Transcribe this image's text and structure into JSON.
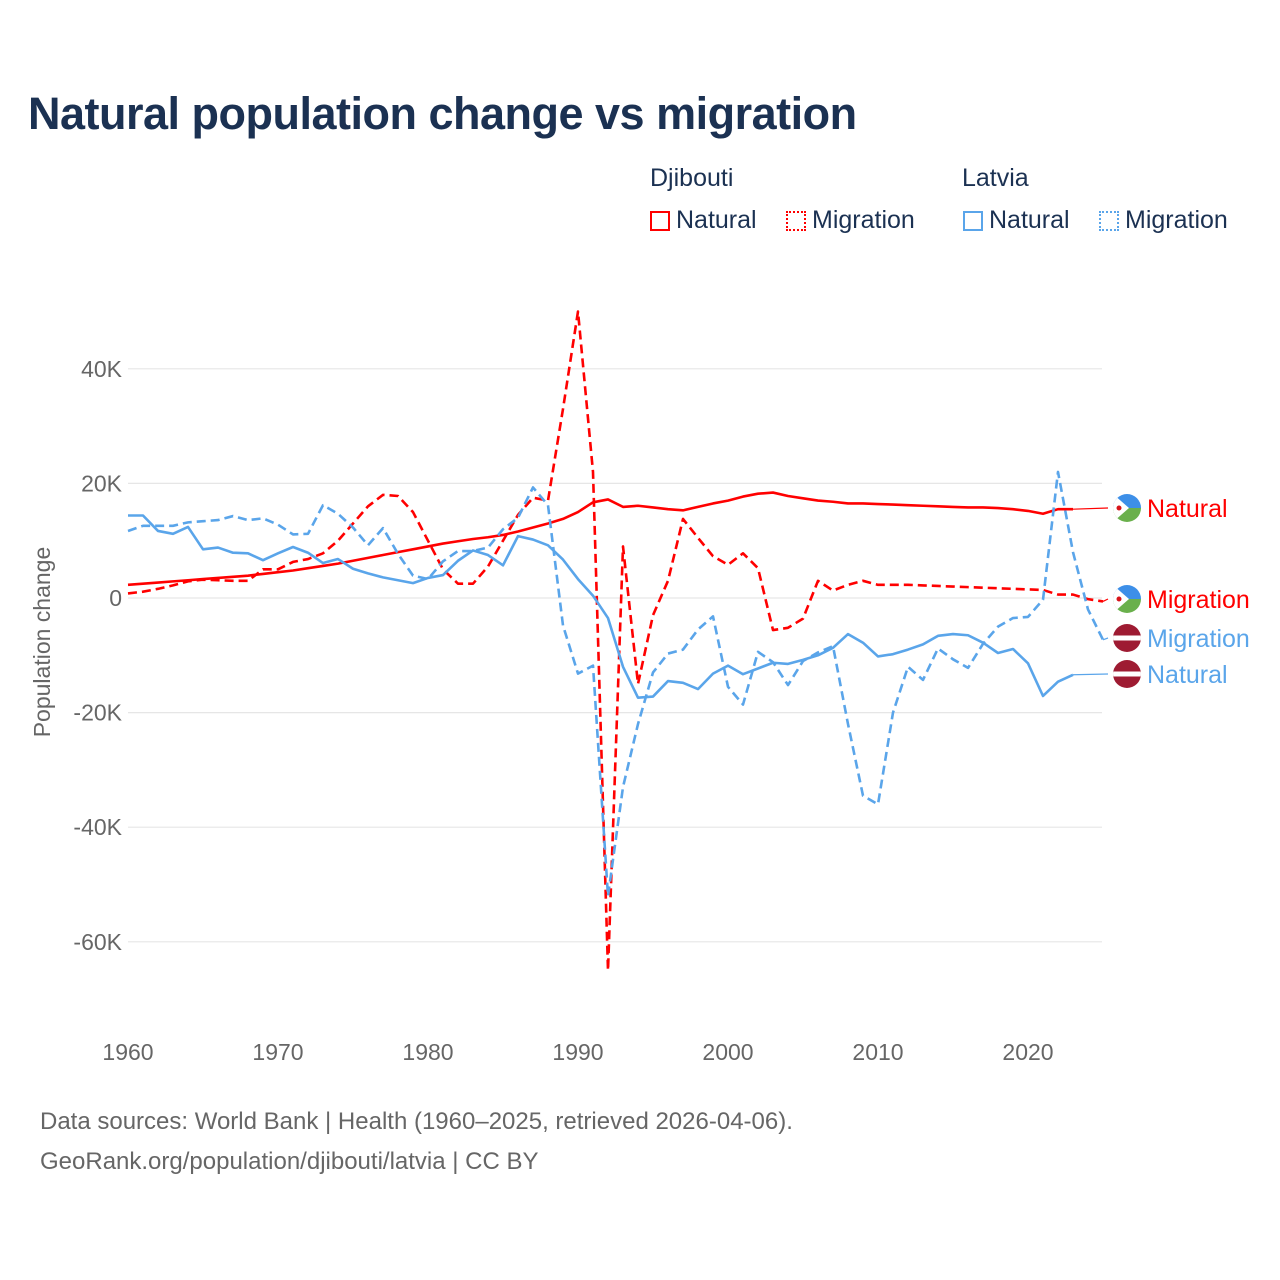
{
  "title": "Natural population change vs migration",
  "legend": {
    "groups": [
      {
        "name": "Djibouti",
        "color": "#ff0000",
        "items": [
          "Natural",
          "Migration"
        ]
      },
      {
        "name": "Latvia",
        "color": "#5aa5ea",
        "items": [
          "Natural",
          "Migration"
        ]
      }
    ]
  },
  "footer": {
    "line1": "Data sources: World Bank | Health (1960–2025, retrieved 2026-04-06).",
    "line2": "GeoRank.org/population/djibouti/latvia | CC BY"
  },
  "chart_data": {
    "type": "line",
    "title": "Natural population change vs migration",
    "xlabel": "",
    "ylabel": "Population change",
    "xlim": [
      1960,
      2025
    ],
    "ylim": [
      -70000,
      50000
    ],
    "x_ticks": [
      1960,
      1970,
      1980,
      1990,
      2000,
      2010,
      2020
    ],
    "x_tick_labels": [
      "1960",
      "1970",
      "1980",
      "1990",
      "2000",
      "2010",
      "2020"
    ],
    "y_ticks": [
      40000,
      20000,
      0,
      -20000,
      -40000,
      -60000
    ],
    "y_tick_labels": [
      "40K",
      "20K",
      "0",
      "-20K",
      "-40K",
      "-60K"
    ],
    "grid": true,
    "legend_position": "top-right",
    "end_labels": [
      "Natural",
      "Migration",
      "Migration",
      "Natural"
    ],
    "series": [
      {
        "name": "Djibouti Natural",
        "country": "Djibouti",
        "kind": "Natural",
        "color": "#ff0000",
        "dash": false,
        "start_year": 1960,
        "values_k": [
          2.3,
          2.5,
          2.7,
          2.9,
          3.1,
          3.3,
          3.5,
          3.7,
          3.9,
          4.2,
          4.5,
          4.8,
          5.2,
          5.6,
          6.0,
          6.5,
          7.0,
          7.5,
          8.0,
          8.5,
          9.0,
          9.5,
          9.9,
          10.3,
          10.6,
          11.0,
          11.6,
          12.3,
          13.0,
          13.8,
          15.0,
          16.7,
          17.2,
          15.9,
          16.1,
          15.8,
          15.5,
          15.3,
          15.9,
          16.5,
          17.0,
          17.7,
          18.2,
          18.4,
          17.8,
          17.4,
          17.0,
          16.8,
          16.5,
          16.5,
          16.4,
          16.3,
          16.2,
          16.1,
          16.0,
          15.9,
          15.8,
          15.8,
          15.7,
          15.5,
          15.2,
          14.7,
          15.5,
          15.5
        ],
        "label_end_year": 2025
      },
      {
        "name": "Djibouti Migration",
        "country": "Djibouti",
        "kind": "Migration",
        "color": "#ff0000",
        "dash": true,
        "start_year": 1960,
        "values_k": [
          0.8,
          1.1,
          1.6,
          2.2,
          2.9,
          3.2,
          3.1,
          3.0,
          3.0,
          5.0,
          5.0,
          6.3,
          6.8,
          7.8,
          10.0,
          13.0,
          16.0,
          18.0,
          17.8,
          15.0,
          10.0,
          5.0,
          2.5,
          2.5,
          5.5,
          10.0,
          14.5,
          17.5,
          17.0,
          33.0,
          50.0,
          22.0,
          -65.0,
          9.0,
          -15.0,
          -3.0,
          3.0,
          13.8,
          10.5,
          7.3,
          5.8,
          7.8,
          5.2,
          -5.6,
          -5.2,
          -3.6,
          3.0,
          1.3,
          2.3,
          3.0,
          2.3,
          2.3,
          2.3,
          2.2,
          2.1,
          2.0,
          1.9,
          1.8,
          1.7,
          1.6,
          1.5,
          1.4,
          0.6,
          0.6,
          -0.2,
          -0.6
        ],
        "label_end_year": 2025
      },
      {
        "name": "Latvia Natural",
        "country": "Latvia",
        "kind": "Natural",
        "color": "#5aa5ea",
        "dash": false,
        "start_year": 1960,
        "values_k": [
          14.4,
          14.4,
          11.7,
          11.2,
          12.4,
          8.5,
          8.8,
          7.9,
          7.8,
          6.6,
          7.8,
          8.9,
          7.9,
          6.1,
          6.8,
          5.1,
          4.3,
          3.6,
          3.1,
          2.6,
          3.5,
          4.0,
          6.5,
          8.3,
          7.5,
          5.7,
          10.8,
          10.2,
          9.2,
          6.7,
          3.3,
          0.4,
          -3.5,
          -12.0,
          -17.4,
          -17.2,
          -14.5,
          -14.8,
          -15.9,
          -13.2,
          -11.8,
          -13.3,
          -12.3,
          -11.3,
          -11.5,
          -10.8,
          -10.0,
          -8.7,
          -6.3,
          -7.8,
          -10.2,
          -9.8,
          -9.0,
          -8.1,
          -6.6,
          -6.3,
          -6.5,
          -7.8,
          -9.6,
          -8.9,
          -11.4,
          -17.1,
          -14.6,
          -13.4
        ],
        "label_end_year": 2025
      },
      {
        "name": "Latvia Migration",
        "country": "Latvia",
        "kind": "Migration",
        "color": "#5aa5ea",
        "dash": true,
        "start_year": 1960,
        "values_k": [
          11.7,
          12.6,
          12.6,
          12.6,
          13.2,
          13.4,
          13.6,
          14.3,
          13.6,
          13.9,
          12.8,
          11.1,
          11.2,
          16.2,
          14.7,
          12.3,
          9.2,
          12.2,
          7.7,
          3.9,
          3.3,
          6.4,
          8.2,
          8.2,
          8.8,
          12.0,
          14.0,
          19.3,
          16.2,
          -4.8,
          -13.2,
          -11.8,
          -52.0,
          -33.0,
          -22.0,
          -13.0,
          -9.7,
          -9.0,
          -5.5,
          -3.2,
          -15.5,
          -18.6,
          -9.4,
          -11.2,
          -15.2,
          -11.0,
          -9.5,
          -8.4,
          -22.0,
          -34.5,
          -36.0,
          -20.0,
          -12.0,
          -14.3,
          -8.8,
          -10.7,
          -12.2,
          -8.0,
          -5.0,
          -3.5,
          -3.3,
          -0.3,
          22.0,
          8.0,
          -2.0,
          -7.3
        ],
        "label_end_year": 2025
      }
    ]
  }
}
